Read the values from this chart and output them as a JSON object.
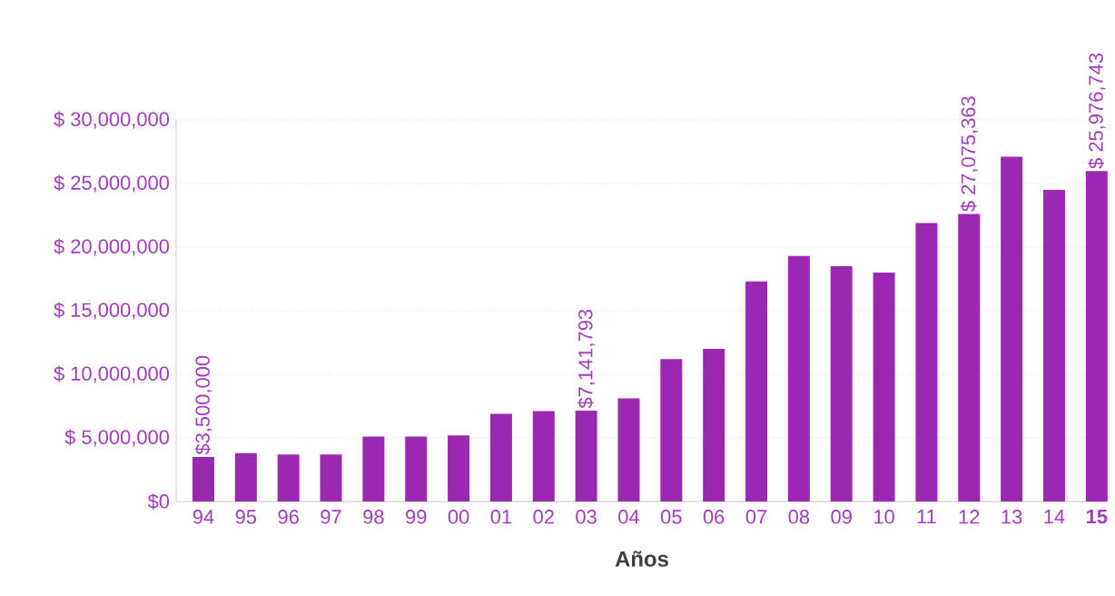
{
  "chart_data": {
    "type": "bar",
    "xlabel": "Años",
    "categories": [
      "94",
      "95",
      "96",
      "97",
      "98",
      "99",
      "00",
      "01",
      "02",
      "03",
      "04",
      "05",
      "06",
      "07",
      "08",
      "09",
      "10",
      "11",
      "12",
      "13",
      "14",
      "**15**"
    ],
    "values": [
      3500000,
      3800000,
      3700000,
      3700000,
      5100000,
      5100000,
      5200000,
      6900000,
      7100000,
      7141793,
      8100000,
      11200000,
      12000000,
      17300000,
      19300000,
      18500000,
      18000000,
      21900000,
      22600000,
      27100000,
      24500000,
      25976743
    ],
    "value_labels": [
      "$3,500,000",
      null,
      null,
      null,
      null,
      null,
      null,
      null,
      null,
      "$7,141,793",
      null,
      null,
      null,
      null,
      null,
      null,
      null,
      null,
      null,
      null,
      null,
      "$ 25,976,743"
    ],
    "annotations": [
      "$ 27,075,363"
    ],
    "color": "#9c27b0",
    "ylim": [
      0,
      30000000
    ],
    "yticks": [
      {
        "value": 0,
        "label": "$0"
      },
      {
        "value": 5000000,
        "label": "$ 5,000,000"
      },
      {
        "value": 10000000,
        "label": "$ 10,000,000"
      },
      {
        "value": 15000000,
        "label": "$ 15,000,000"
      },
      {
        "value": 20000000,
        "label": "$ 20,000,000"
      },
      {
        "value": 25000000,
        "label": "$ 25,000,000"
      },
      {
        "value": 30000000,
        "label": "$ 30,000,000"
      }
    ],
    "grid": "y"
  }
}
